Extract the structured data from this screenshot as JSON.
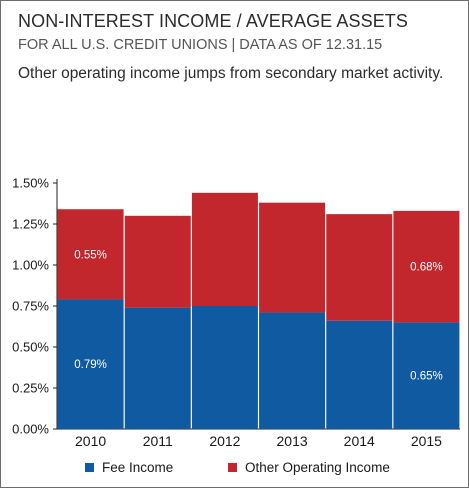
{
  "header": {
    "title": "NON-INTEREST INCOME / AVERAGE ASSETS",
    "subtitle": "FOR ALL U.S. CREDIT UNIONS | DATA AS OF 12.31.15",
    "note": "Other operating income jumps from secondary market activity."
  },
  "colors": {
    "fee": "#0f5aa0",
    "other": "#c1272d"
  },
  "chart_data": {
    "type": "bar",
    "stacked": true,
    "categories": [
      "2010",
      "2011",
      "2012",
      "2013",
      "2014",
      "2015"
    ],
    "series": [
      {
        "name": "Fee Income",
        "values": [
          0.79,
          0.74,
          0.75,
          0.71,
          0.66,
          0.65
        ]
      },
      {
        "name": "Other Operating Income",
        "values": [
          0.55,
          0.56,
          0.69,
          0.67,
          0.65,
          0.68
        ]
      }
    ],
    "ylim": [
      0,
      1.5
    ],
    "yticks": [
      "0.00%",
      "0.25%",
      "0.50%",
      "0.75%",
      "1.00%",
      "1.25%",
      "1.50%"
    ],
    "data_labels": [
      {
        "series": 0,
        "index": 0,
        "text": "0.79%"
      },
      {
        "series": 1,
        "index": 0,
        "text": "0.55%"
      },
      {
        "series": 0,
        "index": 5,
        "text": "0.65%"
      },
      {
        "series": 1,
        "index": 5,
        "text": "0.68%"
      }
    ],
    "legend": {
      "position": "bottom"
    }
  }
}
